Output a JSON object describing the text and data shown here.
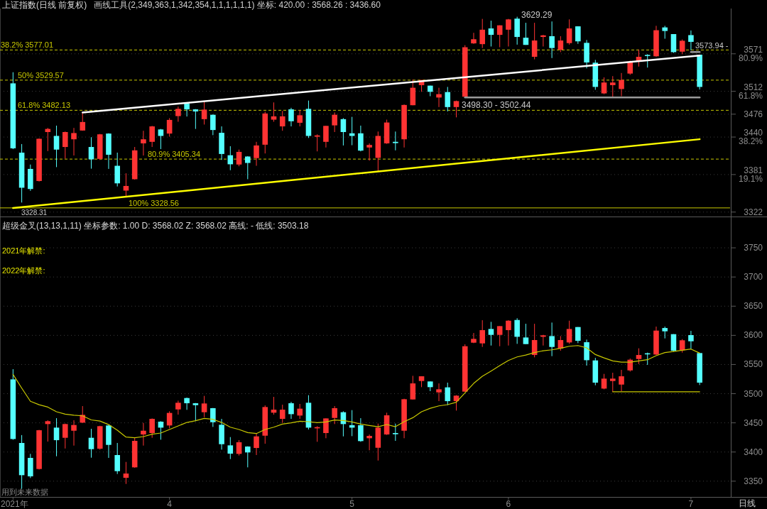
{
  "chart_data": [
    {
      "type": "candlestick",
      "title": "上证指数(日线 前复权)",
      "subtitle": "画线工具(2,349,363,1,342,354,1,1,1,1,1,1) 坐标: 420.00 : 3568.26 : 3436.60",
      "tick_labels": "y",
      "grid": "y",
      "categories": [
        null,
        null,
        null,
        null,
        null,
        null,
        null,
        null,
        null,
        null,
        null,
        null,
        null,
        null,
        null,
        null,
        null,
        null,
        null,
        null,
        null,
        null,
        null,
        null,
        null,
        null,
        null,
        null,
        null,
        null,
        null,
        null,
        null,
        null,
        null,
        null,
        null,
        null,
        null,
        null,
        null,
        null,
        null,
        null,
        null,
        null,
        null,
        null,
        null,
        null,
        null,
        null,
        null,
        null,
        null,
        null,
        null,
        null,
        null,
        null,
        null,
        null,
        null,
        null,
        null,
        null,
        null,
        null,
        null,
        null,
        null,
        null,
        null,
        null,
        null,
        null,
        null,
        null,
        null,
        null
      ],
      "ohlc": [
        [
          3524.5,
          3542,
          3421,
          3422.3
        ],
        [
          3415.5,
          3429,
          3337,
          3360.3
        ],
        [
          3389.9,
          3396.8,
          3355.4,
          3358.3
        ],
        [
          3370.9,
          3438,
          3370,
          3437.3
        ],
        [
          3447.9,
          3454.4,
          3417.9,
          3452.8
        ],
        [
          3441.8,
          3458,
          3392.7,
          3420.3
        ],
        [
          3424.4,
          3448.7,
          3406,
          3447.9
        ],
        [
          3436.5,
          3454.4,
          3411,
          3446.3
        ],
        [
          3450.3,
          3478.7,
          3450,
          3463.7
        ],
        [
          3424.4,
          3439.8,
          3390.3,
          3404.9
        ],
        [
          3405.7,
          3445,
          3404,
          3444.3
        ],
        [
          3445.5,
          3446,
          3389.9,
          3412.2
        ],
        [
          3394.8,
          3415.5,
          3362.3,
          3367.2
        ],
        [
          3355.8,
          3383,
          3345.3,
          3363.1
        ],
        [
          3373.7,
          3424.4,
          3373,
          3419.1
        ],
        [
          3430.1,
          3449.9,
          3411,
          3436.5
        ],
        [
          3432.5,
          3457.6,
          3424.4,
          3456.8
        ],
        [
          3452,
          3452.8,
          3421.1,
          3441.8
        ],
        [
          3445.5,
          3469.8,
          3440.6,
          3467
        ],
        [
          3473,
          3488,
          3464.1,
          3484.4
        ],
        [
          3492.5,
          3493.3,
          3472.3,
          3483.6
        ],
        [
          3483.6,
          3484,
          3452.8,
          3480.3
        ],
        [
          3468.2,
          3496.2,
          3459.7,
          3483.2
        ],
        [
          3475.1,
          3475.5,
          3443,
          3451.1
        ],
        [
          3446.7,
          3456.8,
          3404.1,
          3413.4
        ],
        [
          3411.4,
          3425.6,
          3387.9,
          3397.2
        ],
        [
          3396.8,
          3420.3,
          3394,
          3416.7
        ],
        [
          3409.4,
          3409.8,
          3373.7,
          3399.3
        ],
        [
          3406.9,
          3432.5,
          3394.8,
          3426.8
        ],
        [
          3428,
          3479.9,
          3414.2,
          3477.1
        ],
        [
          3467.4,
          3494.5,
          3464.1,
          3472.6
        ],
        [
          3456.8,
          3481.1,
          3449.9,
          3472.6
        ],
        [
          3483.6,
          3486,
          3456.8,
          3464.9
        ],
        [
          3462.5,
          3482.4,
          3456.8,
          3474.3
        ],
        [
          3484.4,
          3497.4,
          3438.6,
          3441.8
        ],
        [
          3440.6,
          3444.3,
          3417.5,
          3442.6
        ],
        [
          3432.5,
          3457.6,
          3423.6,
          3457.6
        ],
        [
          3458.4,
          3478.7,
          3447.9,
          3475.1
        ],
        [
          3468.2,
          3469.8,
          3426.8,
          3447.9
        ],
        [
          3445.9,
          3471.8,
          3427.2,
          3441.8
        ],
        [
          3445.9,
          3458,
          3417.5,
          3418.7
        ],
        [
          3423.6,
          3430.1,
          3402.9,
          3427.6
        ],
        [
          3407.3,
          3448.7,
          3385.4,
          3441.8
        ],
        [
          3430.1,
          3467.4,
          3429.3,
          3462.9
        ],
        [
          3432.5,
          3448.7,
          3419.1,
          3430.5
        ],
        [
          3436.5,
          3491.3,
          3423.6,
          3490.5
        ],
        [
          3490.1,
          3530.6,
          3490,
          3517.6
        ],
        [
          3521.7,
          3529.8,
          3511.2,
          3529.8
        ],
        [
          3520.9,
          3521,
          3504.3,
          3511.2
        ],
        [
          3502.2,
          3517.6,
          3487.2,
          3507.5
        ],
        [
          3510.8,
          3518.9,
          3480.3,
          3487.2
        ],
        [
          3487.2,
          3497.4,
          3471,
          3496.6
        ],
        [
          3503.5,
          3584.6,
          3503,
          3581.3
        ],
        [
          3587.4,
          3604,
          3586.6,
          3593.9
        ],
        [
          3586.2,
          3625.9,
          3580.1,
          3608.9
        ],
        [
          3610.9,
          3623.1,
          3582.5,
          3600.8
        ],
        [
          3600.8,
          3615.8,
          3581.3,
          3615.8
        ],
        [
          3608.9,
          3625.9,
          3582.5,
          3625.1
        ],
        [
          3626.3,
          3629.29,
          3585.4,
          3597.5
        ],
        [
          3596.3,
          3619.8,
          3585,
          3585
        ],
        [
          3566.3,
          3619.8,
          3562.3,
          3591.9
        ],
        [
          3597.5,
          3600.8,
          3582.5,
          3600
        ],
        [
          3598.7,
          3621.9,
          3564.3,
          3580.1
        ],
        [
          3577.3,
          3598.7,
          3573.6,
          3591.9
        ],
        [
          3587.8,
          3625.1,
          3585.4,
          3610.9
        ],
        [
          3614.2,
          3614.2,
          3586.6,
          3590.6
        ],
        [
          3588.2,
          3592.7,
          3548.1,
          3557.4
        ],
        [
          3557,
          3561.4,
          3514.4,
          3518.9
        ],
        [
          3508.7,
          3533.9,
          3507.5,
          3525.8
        ],
        [
          3521.7,
          3535.9,
          3503.18,
          3525.8
        ],
        [
          3515.6,
          3540.8,
          3504.3,
          3529.8
        ],
        [
          3539.9,
          3560.2,
          3537.9,
          3558.2
        ],
        [
          3559.4,
          3577.7,
          3550.9,
          3566.3
        ],
        [
          3569.2,
          3570.4,
          3549.3,
          3567.5
        ],
        [
          3567.1,
          3615,
          3566.3,
          3608.1
        ],
        [
          3612.5,
          3615,
          3594.7,
          3606.9
        ],
        [
          3602,
          3602,
          3572.4,
          3573.6
        ],
        [
          3574.4,
          3593.5,
          3570.4,
          3591.5
        ],
        [
          3600.4,
          3607.7,
          3576.5,
          3589.8
        ],
        [
          3569.6,
          3569.6,
          3514.8,
          3518.9
        ]
      ],
      "colors": [
        "#54ffff",
        "#54ffff",
        "#54ffff",
        "#ff3333",
        "#ff3333",
        "#54ffff",
        "#ff3333",
        "#ff3333",
        "#ff3333",
        "#54ffff",
        "#ff3333",
        "#54ffff",
        "#54ffff",
        "#ff3333",
        "#ff3333",
        "#ff3333",
        "#ff3333",
        "#54ffff",
        "#ff3333",
        "#ff3333",
        "#54ffff",
        "#54ffff",
        "#ff3333",
        "#54ffff",
        "#54ffff",
        "#54ffff",
        "#ff3333",
        "#54ffff",
        "#ff3333",
        "#ff3333",
        "#ff3333",
        "#ff3333",
        "#54ffff",
        "#ff3333",
        "#54ffff",
        "#ff3333",
        "#ff3333",
        "#ff3333",
        "#54ffff",
        "#54ffff",
        "#54ffff",
        "#ff3333",
        "#ff3333",
        "#ff3333",
        "#54ffff",
        "#ff3333",
        "#ff3333",
        "#ff3333",
        "#54ffff",
        "#ff3333",
        "#54ffff",
        "#ff3333",
        "#ff3333",
        "#ff3333",
        "#ff3333",
        "#54ffff",
        "#ff3333",
        "#ff3333",
        "#54ffff",
        "#54ffff",
        "#ff3333",
        "#ff3333",
        "#54ffff",
        "#ff3333",
        "#ff3333",
        "#54ffff",
        "#54ffff",
        "#54ffff",
        "#ff3333",
        "#ff3333",
        "#ff3333",
        "#ff3333",
        "#ff3333",
        "#54ffff",
        "#ff3333",
        "#54ffff",
        "#54ffff",
        "#ff3333",
        "#54ffff",
        "#54ffff"
      ],
      "series": [
        {
          "type": "line",
          "color": "#ffffff",
          "values": [
            null,
            null,
            null,
            null,
            null,
            null,
            null,
            null,
            3478.7,
            null,
            null,
            null,
            null,
            null,
            null,
            null,
            null,
            null,
            null,
            null,
            null,
            null,
            null,
            null,
            null,
            null,
            null,
            null,
            null,
            null,
            null,
            null,
            null,
            null,
            null,
            null,
            null,
            null,
            null,
            null,
            null,
            null,
            null,
            null,
            null,
            null,
            null,
            null,
            null,
            null,
            null,
            null,
            null,
            null,
            null,
            null,
            null,
            null,
            null,
            null,
            null,
            null,
            null,
            null,
            null,
            null,
            null,
            null,
            null,
            null,
            null,
            null,
            null,
            null,
            null,
            null,
            null,
            null,
            null,
            3568.26
          ]
        },
        {
          "type": "line",
          "color": "#ffff00",
          "values": [
            3328.31,
            null,
            null,
            null,
            null,
            null,
            null,
            null,
            null,
            null,
            null,
            null,
            null,
            null,
            null,
            null,
            null,
            null,
            null,
            null,
            null,
            null,
            null,
            null,
            null,
            null,
            null,
            null,
            null,
            null,
            null,
            null,
            null,
            null,
            null,
            null,
            null,
            null,
            null,
            null,
            null,
            null,
            null,
            null,
            null,
            null,
            null,
            null,
            null,
            null,
            null,
            null,
            null,
            null,
            null,
            null,
            null,
            null,
            null,
            null,
            null,
            null,
            null,
            null,
            null,
            null,
            null,
            null,
            null,
            null,
            null,
            null,
            null,
            null,
            null,
            null,
            null,
            null,
            null,
            3436.6
          ]
        },
        {
          "type": "line",
          "color": "#9a9a9a",
          "values": [
            null,
            null,
            null,
            null,
            null,
            null,
            null,
            null,
            null,
            null,
            null,
            null,
            null,
            null,
            null,
            null,
            null,
            null,
            null,
            null,
            null,
            null,
            null,
            null,
            null,
            null,
            null,
            null,
            null,
            null,
            null,
            null,
            null,
            null,
            null,
            null,
            null,
            null,
            null,
            null,
            null,
            null,
            null,
            null,
            null,
            null,
            null,
            null,
            null,
            null,
            null,
            null,
            3502.44,
            null,
            null,
            null,
            null,
            null,
            null,
            null,
            null,
            null,
            null,
            null,
            null,
            null,
            null,
            null,
            null,
            null,
            null,
            null,
            null,
            null,
            null,
            null,
            null,
            null,
            null,
            3502.44
          ]
        },
        {
          "type": "line",
          "color": "#9a9a9a",
          "values": [
            null,
            null,
            null,
            null,
            null,
            null,
            null,
            null,
            null,
            null,
            null,
            null,
            null,
            null,
            null,
            null,
            null,
            null,
            null,
            null,
            null,
            null,
            null,
            null,
            null,
            null,
            null,
            null,
            null,
            null,
            null,
            null,
            null,
            null,
            null,
            null,
            null,
            null,
            null,
            null,
            null,
            null,
            null,
            null,
            null,
            null,
            null,
            null,
            null,
            null,
            null,
            null,
            null,
            null,
            null,
            null,
            null,
            null,
            null,
            null,
            null,
            null,
            null,
            null,
            null,
            null,
            null,
            null,
            null,
            null,
            null,
            null,
            null,
            null,
            null,
            null,
            null,
            null,
            3573.94,
            3573.94
          ]
        }
      ],
      "ref_lines": [
        {
          "axis": "y",
          "value": 3577.01,
          "label": "38.2% 3577.01",
          "color": "#c8c800",
          "line_style": "dashed"
        },
        {
          "axis": "y",
          "value": 3529.57,
          "label": "50% 3529.57",
          "color": "#c8c800",
          "line_style": "dashed"
        },
        {
          "axis": "y",
          "value": 3482.13,
          "label": "61.8% 3482.13",
          "color": "#c8c800",
          "line_style": "dashed"
        },
        {
          "axis": "y",
          "value": 3405.34,
          "label": "80.9% 3405.34",
          "color": "#c8c800",
          "line_style": "dashed"
        },
        {
          "axis": "y",
          "value": 3328.56,
          "label": "100% 3328.56",
          "color": "#c8c800",
          "line_style": "solid"
        }
      ],
      "annotations": [
        "3629.29",
        "3498.30 - 3502.44",
        "3573.94 -",
        "3328.31"
      ],
      "ylim": [
        3315,
        3640
      ],
      "yticks": [
        {
          "value": 3571,
          "label": "3571\n80.9%"
        },
        {
          "value": 3512,
          "label": "3512\n61.8%"
        },
        3476,
        {
          "value": 3440,
          "label": "3440\n38.2%"
        },
        {
          "value": 3381,
          "label": "3381\n19.1%"
        },
        3322
      ]
    },
    {
      "type": "candlestick",
      "title": "超级金叉(13,13,1,11) 坐标参数: 1.00 D: 3568.02 Z: 3568.02 高线: - 低线: 3503.18",
      "grid": "y",
      "categories": [
        "2021年",
        null,
        null,
        null,
        null,
        null,
        null,
        null,
        null,
        null,
        null,
        null,
        null,
        null,
        null,
        null,
        null,
        null,
        "4",
        null,
        null,
        null,
        null,
        null,
        null,
        null,
        null,
        null,
        null,
        null,
        null,
        null,
        null,
        null,
        null,
        null,
        null,
        null,
        null,
        "5",
        null,
        null,
        null,
        null,
        null,
        null,
        null,
        null,
        null,
        null,
        null,
        null,
        null,
        null,
        null,
        null,
        null,
        "6",
        null,
        null,
        null,
        null,
        null,
        null,
        null,
        null,
        null,
        null,
        null,
        null,
        null,
        null,
        null,
        null,
        null,
        null,
        null,
        null,
        "7",
        null
      ],
      "ohlc": [
        [
          3524.5,
          3542,
          3421,
          3422.3
        ],
        [
          3415.5,
          3429,
          3337,
          3360.3
        ],
        [
          3389.9,
          3396.8,
          3355.4,
          3358.3
        ],
        [
          3370.9,
          3438,
          3370,
          3437.3
        ],
        [
          3447.9,
          3454.4,
          3417.9,
          3452.8
        ],
        [
          3441.8,
          3458,
          3392.7,
          3420.3
        ],
        [
          3424.4,
          3448.7,
          3406,
          3447.9
        ],
        [
          3436.5,
          3454.4,
          3411,
          3446.3
        ],
        [
          3450.3,
          3478.7,
          3450,
          3463.7
        ],
        [
          3424.4,
          3439.8,
          3390.3,
          3404.9
        ],
        [
          3405.7,
          3445,
          3404,
          3444.3
        ],
        [
          3445.5,
          3446,
          3389.9,
          3412.2
        ],
        [
          3394.8,
          3415.5,
          3362.3,
          3367.2
        ],
        [
          3355.8,
          3383,
          3345.3,
          3363.1
        ],
        [
          3373.7,
          3424.4,
          3373,
          3419.1
        ],
        [
          3430.1,
          3449.9,
          3411,
          3436.5
        ],
        [
          3432.5,
          3457.6,
          3424.4,
          3456.8
        ],
        [
          3452,
          3452.8,
          3421.1,
          3441.8
        ],
        [
          3445.5,
          3469.8,
          3440.6,
          3467
        ],
        [
          3473,
          3488,
          3464.1,
          3484.4
        ],
        [
          3492.5,
          3493.3,
          3472.3,
          3483.6
        ],
        [
          3483.6,
          3484,
          3452.8,
          3480.3
        ],
        [
          3468.2,
          3496.2,
          3459.7,
          3483.2
        ],
        [
          3475.1,
          3475.5,
          3443,
          3451.1
        ],
        [
          3446.7,
          3456.8,
          3404.1,
          3413.4
        ],
        [
          3411.4,
          3425.6,
          3387.9,
          3397.2
        ],
        [
          3396.8,
          3420.3,
          3394,
          3416.7
        ],
        [
          3409.4,
          3409.8,
          3373.7,
          3399.3
        ],
        [
          3406.9,
          3432.5,
          3394.8,
          3426.8
        ],
        [
          3428,
          3479.9,
          3414.2,
          3477.1
        ],
        [
          3467.4,
          3494.5,
          3464.1,
          3472.6
        ],
        [
          3456.8,
          3481.1,
          3449.9,
          3472.6
        ],
        [
          3483.6,
          3486,
          3456.8,
          3464.9
        ],
        [
          3462.5,
          3482.4,
          3456.8,
          3474.3
        ],
        [
          3484.4,
          3497.4,
          3438.6,
          3441.8
        ],
        [
          3440.6,
          3444.3,
          3417.5,
          3442.6
        ],
        [
          3432.5,
          3457.6,
          3423.6,
          3457.6
        ],
        [
          3458.4,
          3478.7,
          3447.9,
          3475.1
        ],
        [
          3468.2,
          3469.8,
          3426.8,
          3447.9
        ],
        [
          3445.9,
          3471.8,
          3427.2,
          3441.8
        ],
        [
          3445.9,
          3458,
          3417.5,
          3418.7
        ],
        [
          3423.6,
          3430.1,
          3402.9,
          3427.6
        ],
        [
          3407.3,
          3448.7,
          3385.4,
          3441.8
        ],
        [
          3430.1,
          3467.4,
          3429.3,
          3462.9
        ],
        [
          3432.5,
          3448.7,
          3419.1,
          3430.5
        ],
        [
          3436.5,
          3491.3,
          3423.6,
          3490.5
        ],
        [
          3490.1,
          3530.6,
          3490,
          3517.6
        ],
        [
          3521.7,
          3529.8,
          3511.2,
          3529.8
        ],
        [
          3520.9,
          3521,
          3504.3,
          3511.2
        ],
        [
          3502.2,
          3517.6,
          3487.2,
          3507.5
        ],
        [
          3510.8,
          3518.9,
          3480.3,
          3487.2
        ],
        [
          3487.2,
          3497.4,
          3471,
          3496.6
        ],
        [
          3503.5,
          3584.6,
          3503,
          3581.3
        ],
        [
          3587.4,
          3604,
          3586.6,
          3593.9
        ],
        [
          3586.2,
          3625.9,
          3580.1,
          3608.9
        ],
        [
          3610.9,
          3623.1,
          3582.5,
          3600.8
        ],
        [
          3600.8,
          3615.8,
          3581.3,
          3615.8
        ],
        [
          3608.9,
          3625.9,
          3582.5,
          3625.1
        ],
        [
          3626.3,
          3629.29,
          3585.4,
          3597.5
        ],
        [
          3596.3,
          3619.8,
          3585,
          3585
        ],
        [
          3566.3,
          3619.8,
          3562.3,
          3591.9
        ],
        [
          3597.5,
          3600.8,
          3582.5,
          3600
        ],
        [
          3598.7,
          3621.9,
          3564.3,
          3580.1
        ],
        [
          3577.3,
          3598.7,
          3573.6,
          3591.9
        ],
        [
          3587.8,
          3625.1,
          3585.4,
          3610.9
        ],
        [
          3614.2,
          3614.2,
          3586.6,
          3590.6
        ],
        [
          3588.2,
          3592.7,
          3548.1,
          3557.4
        ],
        [
          3557,
          3561.4,
          3514.4,
          3518.9
        ],
        [
          3508.7,
          3533.9,
          3507.5,
          3525.8
        ],
        [
          3521.7,
          3535.9,
          3503.18,
          3525.8
        ],
        [
          3515.6,
          3540.8,
          3504.3,
          3529.8
        ],
        [
          3539.9,
          3560.2,
          3537.9,
          3558.2
        ],
        [
          3559.4,
          3577.7,
          3550.9,
          3566.3
        ],
        [
          3569.2,
          3570.4,
          3549.3,
          3567.5
        ],
        [
          3567.1,
          3615,
          3566.3,
          3608.1
        ],
        [
          3612.5,
          3615,
          3594.7,
          3606.9
        ],
        [
          3602,
          3602,
          3572.4,
          3573.6
        ],
        [
          3574.4,
          3593.5,
          3570.4,
          3591.5
        ],
        [
          3600.4,
          3607.7,
          3576.5,
          3589.8
        ],
        [
          3569.6,
          3569.6,
          3514.8,
          3518.9
        ]
      ],
      "colors": [
        "#54ffff",
        "#54ffff",
        "#54ffff",
        "#ff3333",
        "#ff3333",
        "#54ffff",
        "#ff3333",
        "#ff3333",
        "#ff3333",
        "#54ffff",
        "#ff3333",
        "#54ffff",
        "#54ffff",
        "#ff3333",
        "#ff3333",
        "#ff3333",
        "#ff3333",
        "#54ffff",
        "#ff3333",
        "#ff3333",
        "#54ffff",
        "#54ffff",
        "#ff3333",
        "#54ffff",
        "#54ffff",
        "#54ffff",
        "#ff3333",
        "#54ffff",
        "#ff3333",
        "#ff3333",
        "#ff3333",
        "#ff3333",
        "#54ffff",
        "#ff3333",
        "#54ffff",
        "#ff3333",
        "#ff3333",
        "#ff3333",
        "#54ffff",
        "#54ffff",
        "#54ffff",
        "#ff3333",
        "#ff3333",
        "#ff3333",
        "#54ffff",
        "#ff3333",
        "#ff3333",
        "#ff3333",
        "#54ffff",
        "#ff3333",
        "#54ffff",
        "#ff3333",
        "#ff3333",
        "#ff3333",
        "#ff3333",
        "#54ffff",
        "#ff3333",
        "#ff3333",
        "#54ffff",
        "#54ffff",
        "#ff3333",
        "#ff3333",
        "#54ffff",
        "#ff3333",
        "#ff3333",
        "#54ffff",
        "#54ffff",
        "#54ffff",
        "#ff3333",
        "#ff3333",
        "#ff3333",
        "#ff3333",
        "#ff3333",
        "#54ffff",
        "#ff3333",
        "#54ffff",
        "#54ffff",
        "#ff3333",
        "#54ffff",
        "#54ffff"
      ],
      "series": [
        {
          "type": "line",
          "color": "#c8c800",
          "values": [
            3533,
            3509.5,
            3487,
            3481,
            3477,
            3469,
            3465,
            3463,
            3462,
            3455,
            3453,
            3447,
            3437.4,
            3425.6,
            3424.4,
            3426.4,
            3430.5,
            3432.5,
            3438.6,
            3444.7,
            3450.7,
            3453.6,
            3457.6,
            3456,
            3450.7,
            3442.6,
            3438.6,
            3433.3,
            3431.7,
            3438.6,
            3442.6,
            3447.9,
            3449.9,
            3452.8,
            3452,
            3450.3,
            3451.5,
            3454.8,
            3454,
            3451.5,
            3447.9,
            3445.5,
            3443.4,
            3447.1,
            3443.4,
            3452,
            3458.8,
            3469,
            3475,
            3479.1,
            3481.2,
            3485.2,
            3501.4,
            3517.6,
            3529.8,
            3538.7,
            3548,
            3557,
            3563,
            3566.3,
            3570.4,
            3573.6,
            3575.2,
            3577.7,
            3581.3,
            3582.5,
            3578.5,
            3567.1,
            3561.4,
            3556.2,
            3554.1,
            3554.1,
            3556.2,
            3558.2,
            3565.1,
            3570.4,
            3572.4,
            3574.4,
            3576.5,
            3569.6
          ]
        },
        {
          "type": "line",
          "color": "#c8c800",
          "values": [
            null,
            null,
            null,
            null,
            null,
            null,
            null,
            null,
            null,
            null,
            null,
            null,
            null,
            null,
            null,
            null,
            null,
            null,
            null,
            null,
            null,
            null,
            null,
            null,
            null,
            null,
            null,
            null,
            null,
            null,
            null,
            null,
            null,
            null,
            null,
            null,
            null,
            null,
            null,
            null,
            null,
            null,
            null,
            null,
            null,
            null,
            null,
            null,
            null,
            null,
            null,
            null,
            null,
            null,
            null,
            null,
            null,
            null,
            null,
            null,
            null,
            null,
            null,
            null,
            null,
            null,
            null,
            null,
            null,
            3503.18,
            null,
            null,
            null,
            null,
            null,
            null,
            null,
            null,
            null,
            3503.18
          ]
        }
      ],
      "annotations": [
        "2021年解禁:",
        "2022年解禁:",
        "用到未来数据",
        "日线"
      ],
      "ylim": [
        3323,
        3800
      ],
      "yticks": [
        3350,
        3400,
        3450,
        3500,
        3550,
        3600,
        3650,
        3700,
        3750
      ]
    }
  ]
}
